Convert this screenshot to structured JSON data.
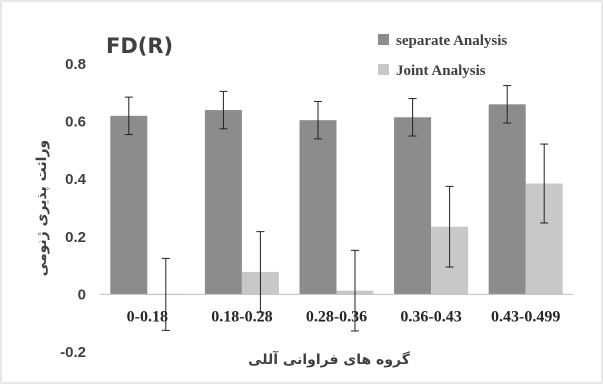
{
  "chart_data": {
    "type": "bar",
    "title": "FD(R)",
    "xlabel": "گروه های فراوانی آللی",
    "ylabel": "وراثت پذیری ژنومی",
    "categories": [
      "0-0.18",
      "0.18-0.28",
      "0.28-0.36",
      "0.36-0.43",
      "0.43-0.499"
    ],
    "yticks": [
      "0.8",
      "0.6",
      "0.4",
      "0.2",
      "0",
      "-0.2"
    ],
    "ylim": [
      -0.2,
      0.8
    ],
    "grid": false,
    "legend_position": "top-right",
    "series": [
      {
        "name": "separate Analysis",
        "color": "#8c8c8c",
        "values": [
          0.62,
          0.64,
          0.605,
          0.615,
          0.66
        ],
        "errors": [
          0.065,
          0.065,
          0.065,
          0.065,
          0.065
        ]
      },
      {
        "name": "Joint Analysis",
        "color": "#c8c8c8",
        "values": [
          0.0,
          0.078,
          0.013,
          0.235,
          0.385
        ],
        "errors": [
          0.125,
          0.14,
          0.14,
          0.14,
          0.137
        ]
      }
    ]
  }
}
